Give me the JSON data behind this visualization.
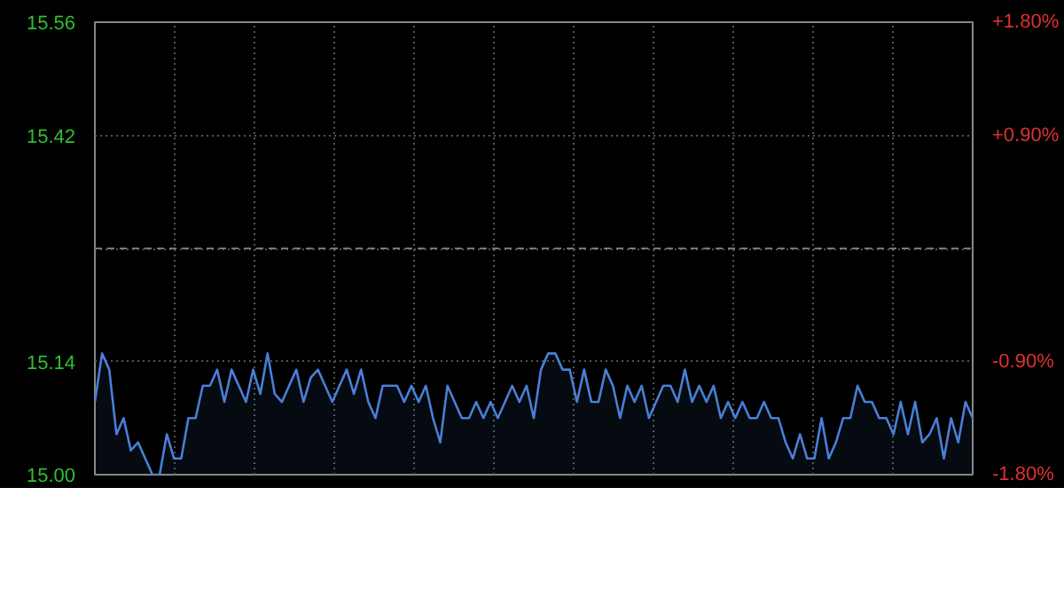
{
  "chart_data": [
    {
      "type": "area",
      "categories": [
        null,
        null,
        null,
        null,
        null,
        null,
        null,
        null,
        null,
        null,
        null,
        null,
        null,
        null,
        null,
        null,
        null,
        null,
        null,
        null,
        null,
        null,
        null,
        null,
        null,
        null,
        null,
        null,
        null,
        null,
        null,
        null,
        null,
        null,
        null,
        null,
        null,
        null,
        null,
        null,
        null,
        null,
        null,
        null,
        null,
        null,
        null,
        null,
        null,
        null,
        null,
        null,
        null,
        null,
        null,
        null,
        null,
        null,
        null,
        null,
        null,
        null,
        null,
        null,
        null,
        null,
        null,
        null,
        null,
        null,
        null,
        null,
        null,
        null,
        null,
        null,
        null,
        null,
        null,
        null,
        null,
        null,
        null,
        null,
        null,
        null,
        null,
        null,
        null,
        null,
        null,
        null,
        null,
        null,
        null,
        null,
        null,
        null,
        null,
        null,
        null,
        null,
        null,
        null,
        null,
        null,
        null,
        null,
        null,
        null,
        null,
        null,
        null,
        null,
        null,
        null,
        null,
        null,
        null,
        null,
        null,
        null,
        null
      ],
      "series": [
        {
          "color": "#4a7fd6",
          "values": [
            15.09,
            15.15,
            15.13,
            15.05,
            15.07,
            15.03,
            15.04,
            15.02,
            15.0,
            15.0,
            15.05,
            15.02,
            15.02,
            15.07,
            15.07,
            15.11,
            15.11,
            15.13,
            15.09,
            15.13,
            15.11,
            15.09,
            15.13,
            15.1,
            15.15,
            15.1,
            15.09,
            15.11,
            15.13,
            15.09,
            15.12,
            15.13,
            15.11,
            15.09,
            15.11,
            15.13,
            15.1,
            15.13,
            15.09,
            15.07,
            15.11,
            15.11,
            15.11,
            15.09,
            15.11,
            15.09,
            15.11,
            15.07,
            15.04,
            15.11,
            15.09,
            15.07,
            15.07,
            15.09,
            15.07,
            15.09,
            15.07,
            15.09,
            15.11,
            15.09,
            15.11,
            15.07,
            15.13,
            15.15,
            15.15,
            15.13,
            15.13,
            15.09,
            15.13,
            15.09,
            15.09,
            15.13,
            15.11,
            15.07,
            15.11,
            15.09,
            15.11,
            15.07,
            15.09,
            15.11,
            15.11,
            15.09,
            15.13,
            15.09,
            15.11,
            15.09,
            15.11,
            15.07,
            15.09,
            15.07,
            15.09,
            15.07,
            15.07,
            15.09,
            15.07,
            15.07,
            15.04,
            15.02,
            15.05,
            15.02,
            15.02,
            15.07,
            15.02,
            15.04,
            15.07,
            15.07,
            15.11,
            15.09,
            15.09,
            15.07,
            15.07,
            15.05,
            15.09,
            15.05,
            15.09,
            15.04,
            15.05,
            15.07,
            15.02,
            15.07,
            15.04,
            15.09,
            15.07
          ]
        }
      ],
      "ylim": [
        15.0,
        15.56
      ],
      "yticks": [
        {
          "value": 15.0,
          "label": "15.00"
        },
        15.14,
        {
          "value": 15.28,
          "label": null
        },
        15.42,
        15.56
      ],
      "y2lim": [
        -1.8,
        1.8
      ],
      "y2ticks": [
        {
          "value": -1.8,
          "label": "-1.80%"
        },
        {
          "value": -0.9,
          "label": "-0.90%"
        },
        {
          "value": 0.9,
          "label": "+0.90%"
        },
        {
          "value": 1.8,
          "label": "+1.80%"
        }
      ],
      "ref_lines": [
        {
          "axis": "y",
          "value": 15.28,
          "color": "#777777",
          "line_style": "dashed"
        }
      ],
      "grid": true
    }
  ]
}
